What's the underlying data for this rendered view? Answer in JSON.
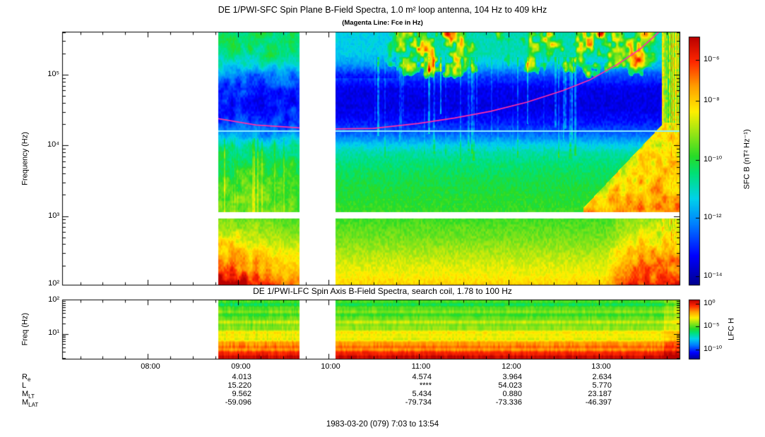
{
  "header": {
    "title": "DE 1/PWI-SFC  Spin Plane B-Field Spectra, 1.0 m² loop antenna, 104 Hz to 409 kHz",
    "subtitle": "(Magenta Line: Fce in Hz)"
  },
  "sfc_panel": {
    "ylabel": "Frequency (Hz)",
    "yticks": [
      "10⁵",
      "10⁴",
      "10³",
      "10²"
    ],
    "colorbar_label": "SFC B (nT² Hz⁻¹)",
    "colorbar_ticks": [
      "10⁻⁶",
      "10⁻⁸",
      "10⁻¹⁰",
      "10⁻¹²",
      "10⁻¹⁴"
    ]
  },
  "lfc_panel": {
    "title": "DE 1/PWI-LFC  Spin Axis B-Field Spectra, search coil, 1.78 to 100 Hz",
    "ylabel": "Freq (Hz)",
    "yticks": [
      "10²",
      "10¹"
    ],
    "colorbar_label": "LFC H",
    "colorbar_ticks": [
      "10⁰",
      "10⁻⁵",
      "10⁻¹⁰"
    ]
  },
  "xaxis": {
    "ticks": [
      "08:00",
      "09:00",
      "10:00",
      "11:00",
      "12:00",
      "13:00"
    ]
  },
  "ephemeris": {
    "rows": [
      {
        "label": "R",
        "sub": "e",
        "values": [
          "4.013",
          "4.574",
          "3.964",
          "2.634"
        ]
      },
      {
        "label": "L",
        "sub": "",
        "values": [
          "15.220",
          "****",
          "54.023",
          "5.770"
        ]
      },
      {
        "label": "M",
        "sub": "LT",
        "values": [
          "9.562",
          "5.434",
          "0.880",
          "23.187"
        ]
      },
      {
        "label": "M",
        "sub": "LAT",
        "values": [
          "-59.096",
          "-79.734",
          "-73.336",
          "-46.397"
        ]
      }
    ]
  },
  "footer": {
    "date_range": "1983-03-20 (079) 7:03 to 13:54"
  },
  "chart_data": {
    "type": "heatmap",
    "title": "DE 1/PWI-SFC Spin Plane B-Field Spectra and DE 1/PWI-LFC Spin Axis B-Field Spectra",
    "time": {
      "start_hours": 7.05,
      "end_hours": 13.9,
      "label_start": "7:03",
      "label_end": "13:54",
      "date": "1983-03-20 (079)"
    },
    "xticks": [
      "08:00",
      "09:00",
      "10:00",
      "11:00",
      "12:00",
      "13:00"
    ],
    "xticks_hours": [
      8,
      9,
      10,
      11,
      12,
      13
    ],
    "data_segments_hours": [
      [
        8.78,
        9.68
      ],
      [
        10.08,
        13.9
      ]
    ],
    "sfc": {
      "freq_range_hz": [
        104,
        409000
      ],
      "value_label": "SFC B (nT² Hz⁻¹)",
      "colorbar_ticks_values": [
        "1e-6",
        "1e-8",
        "1e-10",
        "1e-12",
        "1e-14"
      ],
      "white_gap_logf": [
        2.968,
        3.058
      ],
      "horizontal_line_hz": 16000,
      "fce_points_hz": [
        [
          8.78,
          24000
        ],
        [
          9.2,
          19500
        ],
        [
          9.68,
          17800
        ],
        [
          10.08,
          17200
        ],
        [
          10.5,
          17500
        ],
        [
          11.0,
          20500
        ],
        [
          11.4,
          24500
        ],
        [
          11.8,
          30500
        ],
        [
          12.2,
          41000
        ],
        [
          12.6,
          60000
        ],
        [
          12.9,
          85000
        ],
        [
          13.2,
          140000
        ],
        [
          13.45,
          230000
        ],
        [
          13.62,
          360000
        ],
        [
          13.72,
          470000
        ]
      ],
      "profile_logf_u": [
        [
          2.017,
          0.74
        ],
        [
          2.15,
          0.7
        ],
        [
          2.4,
          0.65
        ],
        [
          2.7,
          0.58
        ],
        [
          2.968,
          0.54
        ],
        [
          3.058,
          0.53
        ],
        [
          3.4,
          0.5
        ],
        [
          3.7,
          0.46
        ],
        [
          3.9,
          0.41
        ],
        [
          4.0,
          0.35
        ],
        [
          4.1,
          0.27
        ],
        [
          4.2,
          0.2
        ],
        [
          4.35,
          0.13
        ],
        [
          4.55,
          0.09
        ],
        [
          4.8,
          0.1
        ],
        [
          5.0,
          0.2
        ],
        [
          5.15,
          0.33
        ],
        [
          5.3,
          0.4
        ],
        [
          5.612,
          0.4
        ]
      ]
    },
    "lfc": {
      "freq_range_hz": [
        1.78,
        100
      ],
      "value_label": "LFC H",
      "colorbar_ticks_values": [
        "1e0",
        "1e-5",
        "1e-10"
      ],
      "profile_logf_u": [
        [
          0.25,
          0.97
        ],
        [
          0.35,
          0.93
        ],
        [
          0.5,
          0.88
        ],
        [
          0.62,
          0.82
        ],
        [
          0.75,
          0.76
        ],
        [
          0.9,
          0.7
        ],
        [
          1.05,
          0.66
        ],
        [
          1.2,
          0.62
        ],
        [
          1.35,
          0.6
        ],
        [
          1.5,
          0.575
        ],
        [
          1.7,
          0.55
        ],
        [
          1.85,
          0.53
        ],
        [
          2.0,
          0.52
        ]
      ]
    },
    "colors": {
      "fce_line": "#ff2fa8",
      "horizontal_line": "#8ef0ff",
      "background": "#ffffff"
    },
    "colormap_stops": [
      [
        0,
        "#00008C"
      ],
      [
        0.12,
        "#0000FF"
      ],
      [
        0.25,
        "#0082FF"
      ],
      [
        0.35,
        "#00D2EB"
      ],
      [
        0.45,
        "#00E178"
      ],
      [
        0.52,
        "#28DC28"
      ],
      [
        0.62,
        "#A0E614"
      ],
      [
        0.7,
        "#FFF000"
      ],
      [
        0.8,
        "#FFA000"
      ],
      [
        0.9,
        "#FF2800"
      ],
      [
        1,
        "#B90000"
      ]
    ]
  }
}
